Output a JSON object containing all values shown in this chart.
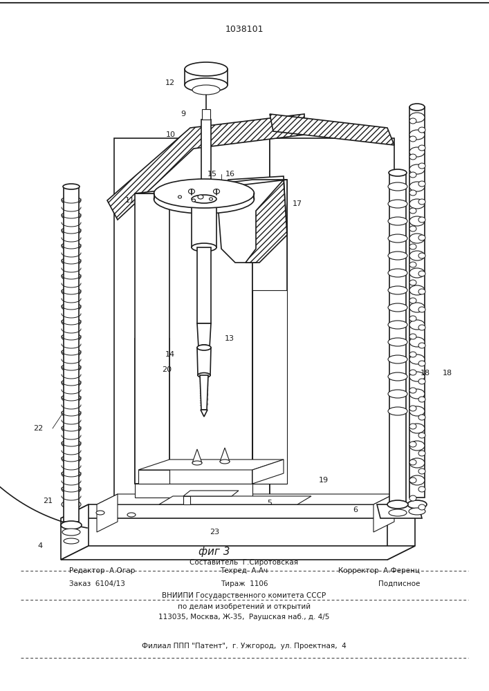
{
  "patent_number": "1038101",
  "fig_label": "фиг 3",
  "footer_line0": "Составитель  Г.Сиротовская",
  "footer_line1_left": "Редактор  А.Огар",
  "footer_line1_mid": "Техред  А.Ач",
  "footer_line1_right": "Корректор  А.Ференц",
  "footer_line2_left": "Заказ  6104/13",
  "footer_line2_mid": "Тираж  1106",
  "footer_line2_right": "Подписное",
  "footer_line3": "ВНИИПИ Государственного комитета СССР",
  "footer_line4": "по делам изобретений и открытий",
  "footer_line5": "113035, Москва, Ж-35,  Раушская наб., д. 4/5",
  "footer_line6": "Филиал ППП \"Патент\",  г. Ужгород,  ул. Проектная,  4",
  "bg_color": "#ffffff",
  "line_color": "#1a1a1a"
}
